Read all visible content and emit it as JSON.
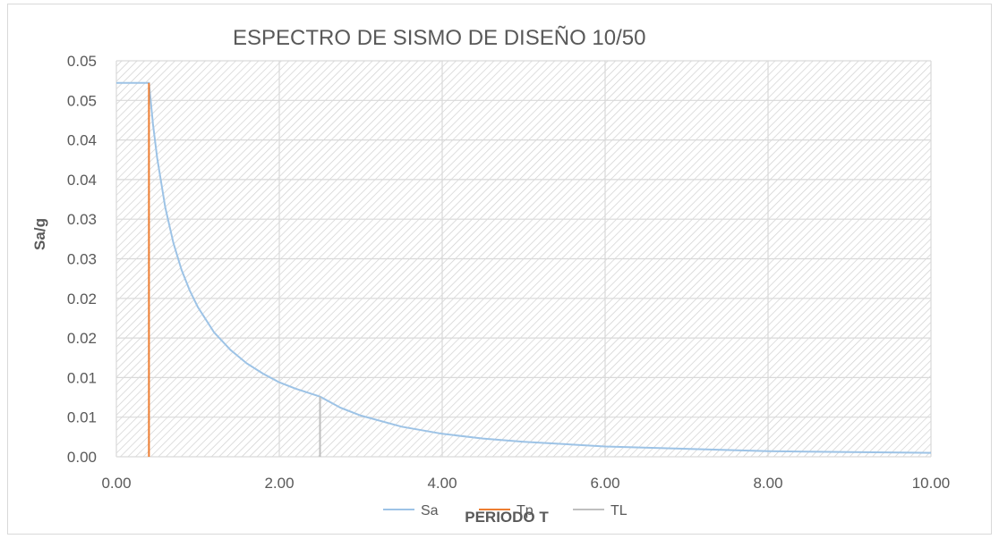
{
  "chart_data": {
    "type": "line",
    "title": "ESPECTRO DE SISMO DE DISEÑO 10/50",
    "xlabel": "PERIODO T",
    "ylabel": "Sa/g",
    "xlim": [
      0,
      10
    ],
    "ylim": [
      0,
      0.05
    ],
    "x_ticks": [
      "0.00",
      "2.00",
      "4.00",
      "6.00",
      "8.00",
      "10.00"
    ],
    "y_ticks": [
      "0.00",
      "0.01",
      "0.01",
      "0.02",
      "0.02",
      "0.03",
      "0.03",
      "0.04",
      "0.04",
      "0.05",
      "0.05"
    ],
    "grid": true,
    "legend_position": "bottom",
    "series": [
      {
        "name": "Sa",
        "color": "#9dc3e6",
        "x": [
          0,
          0.4,
          0.45,
          0.5,
          0.6,
          0.7,
          0.8,
          0.9,
          1.0,
          1.2,
          1.4,
          1.6,
          1.8,
          2.0,
          2.2,
          2.5,
          2.75,
          3.0,
          3.5,
          4.0,
          4.5,
          5.0,
          6.0,
          7.0,
          8.0,
          9.0,
          10.0
        ],
        "y": [
          0.0472,
          0.0472,
          0.042,
          0.0378,
          0.0315,
          0.027,
          0.0236,
          0.021,
          0.0189,
          0.0157,
          0.0135,
          0.0118,
          0.0105,
          0.0094,
          0.0086,
          0.0076,
          0.0062,
          0.0052,
          0.0038,
          0.0029,
          0.0023,
          0.0019,
          0.0013,
          0.001,
          0.0007,
          0.0006,
          0.0005
        ]
      },
      {
        "name": "Tp",
        "color": "#ed7d31",
        "x": [
          0.4,
          0.4
        ],
        "y": [
          0,
          0.0472
        ]
      },
      {
        "name": "TL",
        "color": "#bfbfbf",
        "x": [
          2.5,
          2.5
        ],
        "y": [
          0,
          0.0076
        ]
      }
    ]
  }
}
